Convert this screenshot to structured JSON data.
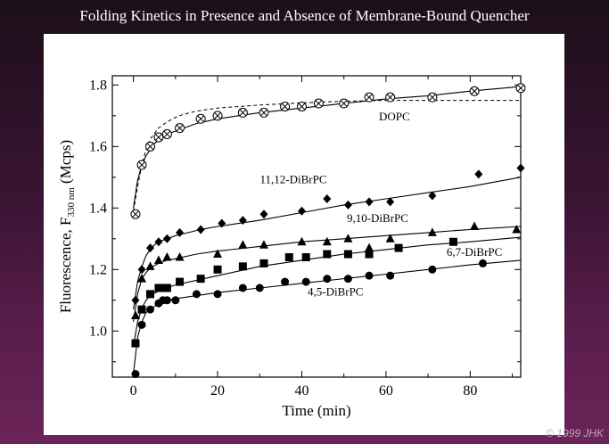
{
  "slide": {
    "title": "Folding Kinetics in Presence and Absence of Membrane-Bound Quencher",
    "copyright": "© 1999 JHK"
  },
  "chart_data": {
    "type": "scatter",
    "xlabel": "Time (min)",
    "ylabel": "Fluorescence, F",
    "ylabel_subscript": "330 nm",
    "ylabel_unit": "(Mcps)",
    "xlim": [
      -5,
      92
    ],
    "ylim": [
      0.85,
      1.83
    ],
    "xticks": [
      0,
      20,
      40,
      60,
      80
    ],
    "yticks": [
      1.0,
      1.2,
      1.4,
      1.6,
      1.8
    ],
    "grid": false,
    "series": [
      {
        "name": "DOPC",
        "marker": "circle-x",
        "x": [
          0.5,
          2,
          4,
          6,
          8,
          11,
          16,
          20,
          26,
          31,
          36,
          40,
          44,
          50,
          56,
          61,
          71,
          81,
          92
        ],
        "y": [
          1.38,
          1.54,
          1.6,
          1.63,
          1.64,
          1.66,
          1.69,
          1.7,
          1.71,
          1.71,
          1.73,
          1.73,
          1.74,
          1.74,
          1.76,
          1.76,
          1.76,
          1.78,
          1.79
        ],
        "fit_solid": {
          "x": [
            0,
            1,
            2,
            3,
            4,
            5,
            6,
            8,
            10,
            12,
            15,
            20,
            25,
            30,
            40,
            50,
            60,
            70,
            80,
            92
          ],
          "y": [
            1.4,
            1.49,
            1.54,
            1.57,
            1.59,
            1.61,
            1.62,
            1.64,
            1.65,
            1.66,
            1.675,
            1.69,
            1.7,
            1.71,
            1.725,
            1.74,
            1.755,
            1.765,
            1.78,
            1.795
          ]
        },
        "fit_dashed": {
          "x": [
            0,
            1,
            2,
            3,
            4,
            6,
            8,
            10,
            12,
            15,
            20,
            30,
            40,
            50,
            60,
            70,
            80,
            92
          ],
          "y": [
            1.39,
            1.47,
            1.54,
            1.59,
            1.625,
            1.66,
            1.68,
            1.695,
            1.705,
            1.715,
            1.725,
            1.735,
            1.742,
            1.747,
            1.75,
            1.75,
            1.75,
            1.75
          ]
        }
      },
      {
        "name": "11,12-DiBrPC",
        "marker": "diamond",
        "x": [
          0.5,
          2,
          4,
          6,
          8,
          11,
          16,
          21,
          26,
          31,
          40,
          46,
          51,
          56,
          61,
          71,
          82,
          92
        ],
        "y": [
          1.1,
          1.2,
          1.27,
          1.29,
          1.3,
          1.32,
          1.33,
          1.35,
          1.36,
          1.38,
          1.39,
          1.43,
          1.41,
          1.42,
          1.42,
          1.44,
          1.51,
          1.53
        ],
        "fit_solid": {
          "x": [
            0,
            1,
            2,
            3,
            4,
            5,
            6,
            8,
            10,
            13,
            16,
            20,
            30,
            40,
            50,
            60,
            70,
            80,
            92
          ],
          "y": [
            1.07,
            1.16,
            1.21,
            1.245,
            1.265,
            1.28,
            1.29,
            1.3,
            1.31,
            1.32,
            1.33,
            1.34,
            1.36,
            1.385,
            1.41,
            1.43,
            1.45,
            1.47,
            1.5
          ]
        }
      },
      {
        "name": "9,10-DiBrPC",
        "marker": "triangle",
        "x": [
          0.5,
          2,
          4,
          6,
          8,
          11,
          20,
          26,
          31,
          40,
          46,
          51,
          56,
          61,
          71,
          81,
          91
        ],
        "y": [
          1.05,
          1.17,
          1.21,
          1.23,
          1.24,
          1.24,
          1.25,
          1.28,
          1.28,
          1.29,
          1.29,
          1.3,
          1.27,
          1.3,
          1.32,
          1.34,
          1.33
        ],
        "fit_solid": {
          "x": [
            0,
            1,
            2,
            3,
            4,
            6,
            8,
            10,
            15,
            20,
            30,
            40,
            50,
            60,
            70,
            80,
            92
          ],
          "y": [
            1.03,
            1.12,
            1.17,
            1.19,
            1.205,
            1.22,
            1.23,
            1.235,
            1.25,
            1.26,
            1.275,
            1.29,
            1.3,
            1.31,
            1.32,
            1.33,
            1.34
          ]
        }
      },
      {
        "name": "6,7-DiBrPC",
        "marker": "square",
        "x": [
          0.5,
          2,
          4,
          6,
          7,
          8,
          11,
          16,
          20,
          26,
          31,
          37,
          41,
          46,
          51,
          56,
          63,
          76
        ],
        "y": [
          0.96,
          1.07,
          1.12,
          1.14,
          1.14,
          1.14,
          1.16,
          1.17,
          1.2,
          1.21,
          1.22,
          1.24,
          1.24,
          1.25,
          1.25,
          1.25,
          1.27,
          1.29
        ],
        "fit_solid": {
          "x": [
            0,
            1,
            2,
            3,
            4,
            6,
            8,
            10,
            15,
            20,
            30,
            40,
            50,
            60,
            70,
            80,
            92
          ],
          "y": [
            0.95,
            1.03,
            1.075,
            1.1,
            1.115,
            1.13,
            1.14,
            1.15,
            1.165,
            1.18,
            1.21,
            1.23,
            1.25,
            1.265,
            1.28,
            1.29,
            1.305
          ]
        }
      },
      {
        "name": "4,5-DiBrPC",
        "marker": "circle",
        "x": [
          0.5,
          2,
          4,
          6,
          7,
          8,
          10,
          15,
          20,
          26,
          30,
          36,
          41,
          46,
          51,
          56,
          61,
          71,
          83
        ],
        "y": [
          0.86,
          1.02,
          1.07,
          1.09,
          1.1,
          1.1,
          1.1,
          1.12,
          1.12,
          1.14,
          1.14,
          1.16,
          1.16,
          1.17,
          1.17,
          1.18,
          1.18,
          1.2,
          1.22
        ],
        "fit_solid": {
          "x": [
            0,
            1,
            2,
            3,
            4,
            6,
            8,
            10,
            15,
            20,
            30,
            40,
            50,
            60,
            70,
            80,
            92
          ],
          "y": [
            0.86,
            0.98,
            1.03,
            1.06,
            1.07,
            1.09,
            1.1,
            1.105,
            1.115,
            1.125,
            1.14,
            1.155,
            1.17,
            1.185,
            1.2,
            1.215,
            1.23
          ]
        }
      }
    ],
    "annotations": [
      {
        "text": "DOPC",
        "x": 62,
        "y": 1.685
      },
      {
        "text": "11,12-DiBrPC",
        "x": 38,
        "y": 1.48
      },
      {
        "text": "9,10-DiBrPC",
        "x": 58,
        "y": 1.355
      },
      {
        "text": "6,7-DiBrPC",
        "x": 81,
        "y": 1.245
      },
      {
        "text": "4,5-DiBrPC",
        "x": 48,
        "y": 1.115
      }
    ]
  }
}
